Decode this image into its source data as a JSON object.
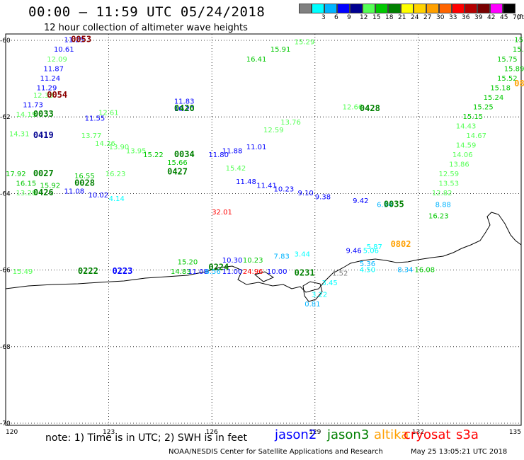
{
  "header": {
    "time_range": "00:00 – 11:59 UTC 05/24/2018",
    "subtitle": "12 hour collection of altimeter wave heights"
  },
  "legend": {
    "unit": "(ft)",
    "bins": [
      {
        "color": "#808080",
        "label": ""
      },
      {
        "color": "#00ffff",
        "label": "3"
      },
      {
        "color": "#00b4ff",
        "label": "6"
      },
      {
        "color": "#0000ff",
        "label": "9"
      },
      {
        "color": "#000090",
        "label": "12"
      },
      {
        "color": "#55ff55",
        "label": "15"
      },
      {
        "color": "#00c800",
        "label": "18"
      },
      {
        "color": "#008000",
        "label": "21"
      },
      {
        "color": "#ffff00",
        "label": "24"
      },
      {
        "color": "#ffd200",
        "label": "27"
      },
      {
        "color": "#ffa000",
        "label": "30"
      },
      {
        "color": "#ff6400",
        "label": "33"
      },
      {
        "color": "#ff0000",
        "label": "36"
      },
      {
        "color": "#b40000",
        "label": "39"
      },
      {
        "color": "#780000",
        "label": "42"
      },
      {
        "color": "#ff00ff",
        "label": "45"
      },
      {
        "color": "#000000",
        "label": "70"
      }
    ]
  },
  "map": {
    "lat_labels": [
      "-60",
      "-62",
      "-64",
      "-66",
      "-68",
      "-70"
    ],
    "lon_labels": [
      "120",
      "123",
      "126",
      "129",
      "132",
      "135"
    ]
  },
  "observations": [
    {
      "t": "11.25",
      "c": "#0000ff",
      "lon": 121.7,
      "lat": -60.05
    },
    {
      "t": "10.61",
      "c": "#0000ff",
      "lon": 121.4,
      "lat": -60.3
    },
    {
      "t": "12.09",
      "c": "#55ff55",
      "lon": 121.2,
      "lat": -60.55
    },
    {
      "t": "11.87",
      "c": "#0000ff",
      "lon": 121.1,
      "lat": -60.8
    },
    {
      "t": "11.24",
      "c": "#0000ff",
      "lon": 121.0,
      "lat": -61.05
    },
    {
      "t": "11.29",
      "c": "#0000ff",
      "lon": 120.9,
      "lat": -61.3
    },
    {
      "t": "12.33",
      "c": "#55ff55",
      "lon": 120.8,
      "lat": -61.5
    },
    {
      "t": "11.73",
      "c": "#0000ff",
      "lon": 120.5,
      "lat": -61.75
    },
    {
      "t": "14.19",
      "c": "#55ff55",
      "lon": 120.3,
      "lat": -62.0
    },
    {
      "t": "11.55",
      "c": "#0000ff",
      "lon": 122.3,
      "lat": -62.1
    },
    {
      "t": "12.61",
      "c": "#55ff55",
      "lon": 122.7,
      "lat": -61.95
    },
    {
      "t": "11.83",
      "c": "#0000ff",
      "lon": 124.9,
      "lat": -61.65
    },
    {
      "t": "10.20",
      "c": "#0000ff",
      "lon": 124.9,
      "lat": -61.85
    },
    {
      "t": "13.77",
      "c": "#55ff55",
      "lon": 122.2,
      "lat": -62.55
    },
    {
      "t": "14.26",
      "c": "#55ff55",
      "lon": 122.6,
      "lat": -62.75
    },
    {
      "t": "13.90",
      "c": "#55ff55",
      "lon": 123.0,
      "lat": -62.85
    },
    {
      "t": "13.95",
      "c": "#55ff55",
      "lon": 123.5,
      "lat": -62.95
    },
    {
      "t": "15.22",
      "c": "#00c800",
      "lon": 124.0,
      "lat": -63.05
    },
    {
      "t": "11.80",
      "c": "#0000ff",
      "lon": 125.9,
      "lat": -63.05
    },
    {
      "t": "11.88",
      "c": "#0000ff",
      "lon": 126.3,
      "lat": -62.95
    },
    {
      "t": "11.01",
      "c": "#0000ff",
      "lon": 127.0,
      "lat": -62.85
    },
    {
      "t": "15.66",
      "c": "#00c800",
      "lon": 124.7,
      "lat": -63.25
    },
    {
      "t": "13.76",
      "c": "#55ff55",
      "lon": 128.0,
      "lat": -62.2
    },
    {
      "t": "12.59",
      "c": "#55ff55",
      "lon": 127.5,
      "lat": -62.4
    },
    {
      "t": "12.66",
      "c": "#55ff55",
      "lon": 129.8,
      "lat": -61.8
    },
    {
      "t": "11.48",
      "c": "#0000ff",
      "lon": 126.7,
      "lat": -63.75
    },
    {
      "t": "11.41",
      "c": "#0000ff",
      "lon": 127.3,
      "lat": -63.85
    },
    {
      "t": "10.23",
      "c": "#0000ff",
      "lon": 127.8,
      "lat": -63.95
    },
    {
      "t": "9.10",
      "c": "#0000ff",
      "lon": 128.5,
      "lat": -64.05
    },
    {
      "t": "9.38",
      "c": "#0000ff",
      "lon": 129.0,
      "lat": -64.15
    },
    {
      "t": "9.42",
      "c": "#0000ff",
      "lon": 130.1,
      "lat": -64.25
    },
    {
      "t": "6.14",
      "c": "#00b4ff",
      "lon": 130.8,
      "lat": -64.35
    },
    {
      "t": "8.88",
      "c": "#00b4ff",
      "lon": 132.5,
      "lat": -64.35
    },
    {
      "t": "12.82",
      "c": "#55ff55",
      "lon": 132.4,
      "lat": -64.05
    },
    {
      "t": "16.23",
      "c": "#00c800",
      "lon": 132.3,
      "lat": -64.65
    },
    {
      "t": "13.53",
      "c": "#55ff55",
      "lon": 132.6,
      "lat": -63.8
    },
    {
      "t": "12.59",
      "c": "#55ff55",
      "lon": 132.6,
      "lat": -63.55
    },
    {
      "t": "13.86",
      "c": "#55ff55",
      "lon": 132.9,
      "lat": -63.3
    },
    {
      "t": "14.06",
      "c": "#55ff55",
      "lon": 133.0,
      "lat": -63.05
    },
    {
      "t": "14.59",
      "c": "#55ff55",
      "lon": 133.1,
      "lat": -62.8
    },
    {
      "t": "14.67",
      "c": "#55ff55",
      "lon": 133.4,
      "lat": -62.55
    },
    {
      "t": "14.43",
      "c": "#55ff55",
      "lon": 133.1,
      "lat": -62.3
    },
    {
      "t": "15.15",
      "c": "#00c800",
      "lon": 133.3,
      "lat": -62.05
    },
    {
      "t": "15.25",
      "c": "#00c800",
      "lon": 133.6,
      "lat": -61.8
    },
    {
      "t": "15.24",
      "c": "#00c800",
      "lon": 133.9,
      "lat": -61.55
    },
    {
      "t": "15.18",
      "c": "#00c800",
      "lon": 134.1,
      "lat": -61.3
    },
    {
      "t": "15.52",
      "c": "#00c800",
      "lon": 134.3,
      "lat": -61.05
    },
    {
      "t": "15.89",
      "c": "#00c800",
      "lon": 134.5,
      "lat": -60.8
    },
    {
      "t": "15.75",
      "c": "#00c800",
      "lon": 134.3,
      "lat": -60.55
    },
    {
      "t": "15.85",
      "c": "#00c800",
      "lon": 134.75,
      "lat": -60.3
    },
    {
      "t": "15.76",
      "c": "#00c800",
      "lon": 134.8,
      "lat": -60.05
    },
    {
      "t": "17.92",
      "c": "#00c800",
      "lon": 120.0,
      "lat": -63.55
    },
    {
      "t": "16.15",
      "c": "#00c800",
      "lon": 120.3,
      "lat": -63.8
    },
    {
      "t": "15.92",
      "c": "#00c800",
      "lon": 121.0,
      "lat": -63.85
    },
    {
      "t": "16.55",
      "c": "#00c800",
      "lon": 122.0,
      "lat": -63.6
    },
    {
      "t": "11.08",
      "c": "#0000ff",
      "lon": 121.7,
      "lat": -64.0
    },
    {
      "t": "10.02",
      "c": "#0000ff",
      "lon": 122.4,
      "lat": -64.1
    },
    {
      "t": "4.14",
      "c": "#00ffff",
      "lon": 123.0,
      "lat": -64.2
    },
    {
      "t": "13.28",
      "c": "#55ff55",
      "lon": 120.3,
      "lat": -64.05
    },
    {
      "t": "16.23",
      "c": "#55ff55",
      "lon": 122.9,
      "lat": -63.55
    },
    {
      "t": "32.01",
      "c": "#ff0000",
      "lon": 126.0,
      "lat": -64.55
    },
    {
      "t": "15.20",
      "c": "#00c800",
      "lon": 125.0,
      "lat": -65.85
    },
    {
      "t": "14.83",
      "c": "#00c800",
      "lon": 124.8,
      "lat": -66.1
    },
    {
      "t": "11.08",
      "c": "#0000ff",
      "lon": 125.3,
      "lat": -66.1
    },
    {
      "t": "6.56",
      "c": "#00b4ff",
      "lon": 125.8,
      "lat": -66.1
    },
    {
      "t": "10.30",
      "c": "#0000ff",
      "lon": 126.3,
      "lat": -65.8
    },
    {
      "t": "10.23",
      "c": "#00c800",
      "lon": 126.9,
      "lat": -65.8
    },
    {
      "t": "11.00",
      "c": "#0000ff",
      "lon": 126.3,
      "lat": -66.1
    },
    {
      "t": "24.96",
      "c": "#ff0000",
      "lon": 126.9,
      "lat": -66.1
    },
    {
      "t": "10.00",
      "c": "#0000ff",
      "lon": 127.6,
      "lat": -66.1
    },
    {
      "t": "7.83",
      "c": "#00b4ff",
      "lon": 127.8,
      "lat": -65.7
    },
    {
      "t": "3.44",
      "c": "#00ffff",
      "lon": 128.4,
      "lat": -65.65
    },
    {
      "t": "9.46",
      "c": "#0000ff",
      "lon": 129.9,
      "lat": -65.55
    },
    {
      "t": "5.87",
      "c": "#00ffff",
      "lon": 130.5,
      "lat": -65.45
    },
    {
      "t": "5.06",
      "c": "#00ffff",
      "lon": 130.4,
      "lat": -65.55
    },
    {
      "t": "5.36",
      "c": "#00b4ff",
      "lon": 130.3,
      "lat": -65.9
    },
    {
      "t": "4.50",
      "c": "#00ffff",
      "lon": 130.3,
      "lat": -66.05
    },
    {
      "t": "1.52",
      "c": "#808080",
      "lon": 129.5,
      "lat": -66.15
    },
    {
      "t": "3.45",
      "c": "#00ffff",
      "lon": 129.2,
      "lat": -66.4
    },
    {
      "t": "3.22",
      "c": "#00ffff",
      "lon": 128.9,
      "lat": -66.7
    },
    {
      "t": "0.81",
      "c": "#00b4ff",
      "lon": 128.7,
      "lat": -66.95
    },
    {
      "t": "8.34",
      "c": "#00b4ff",
      "lon": 131.4,
      "lat": -66.05
    },
    {
      "t": "16.08",
      "c": "#00c800",
      "lon": 131.9,
      "lat": -66.05
    },
    {
      "t": "15.29",
      "c": "#55ff55",
      "lon": 128.4,
      "lat": -60.1
    },
    {
      "t": "15.91",
      "c": "#00c800",
      "lon": 127.7,
      "lat": -60.3
    },
    {
      "t": "16.41",
      "c": "#00c800",
      "lon": 127.0,
      "lat": -60.55
    },
    {
      "t": "14.31",
      "c": "#55ff55",
      "lon": 120.1,
      "lat": -62.5
    },
    {
      "t": "15.42",
      "c": "#55ff55",
      "lon": 126.4,
      "lat": -63.4
    },
    {
      "t": "15.49",
      "c": "#55ff55",
      "lon": 120.2,
      "lat": -66.1
    }
  ],
  "labels": [
    {
      "t": "0053",
      "c": "#8b0000",
      "lon": 121.9,
      "lat": -60.05
    },
    {
      "t": "0054",
      "c": "#8b0000",
      "lon": 121.2,
      "lat": -61.5
    },
    {
      "t": "0033",
      "c": "#008000",
      "lon": 120.8,
      "lat": -62.0
    },
    {
      "t": "0419",
      "c": "#000090",
      "lon": 120.8,
      "lat": -62.55
    },
    {
      "t": "0420",
      "c": "#008000",
      "lon": 124.9,
      "lat": -61.85
    },
    {
      "t": "0428",
      "c": "#008000",
      "lon": 130.3,
      "lat": -61.85
    },
    {
      "t": "0034",
      "c": "#008000",
      "lon": 124.9,
      "lat": -63.05
    },
    {
      "t": "0427",
      "c": "#008000",
      "lon": 124.7,
      "lat": -63.5
    },
    {
      "t": "0027",
      "c": "#008000",
      "lon": 120.8,
      "lat": -63.55
    },
    {
      "t": "0028",
      "c": "#008000",
      "lon": 122.0,
      "lat": -63.8
    },
    {
      "t": "0426",
      "c": "#008000",
      "lon": 120.8,
      "lat": -64.05
    },
    {
      "t": "0035",
      "c": "#008000",
      "lon": 131.0,
      "lat": -64.35
    },
    {
      "t": "0801",
      "c": "#ffa000",
      "lon": 134.8,
      "lat": -61.2
    },
    {
      "t": "0802",
      "c": "#ffa000",
      "lon": 131.2,
      "lat": -65.4
    },
    {
      "t": "0223",
      "c": "#0000ff",
      "lon": 123.1,
      "lat": -66.1
    },
    {
      "t": "0222",
      "c": "#008000",
      "lon": 122.1,
      "lat": -66.1
    },
    {
      "t": "0224",
      "c": "#008000",
      "lon": 125.9,
      "lat": -66.0
    },
    {
      "t": "0231",
      "c": "#008000",
      "lon": 128.4,
      "lat": -66.15
    }
  ],
  "footer": {
    "note": "note:  1) Time is in UTC;  2) SWH is in feet",
    "satellites": [
      {
        "name": "jason2",
        "color": "#0000ff"
      },
      {
        "name": "jason3",
        "color": "#008000"
      },
      {
        "name": "altika",
        "color": "#ffa000"
      },
      {
        "name": "cryosat",
        "color": "#ff0000"
      },
      {
        "name": "s3a",
        "color": "#ff0000"
      }
    ],
    "credit": "NOAA/NESDIS Center for Satellite Applications and Research",
    "timestamp": "May 25 13:05:21 UTC 2018"
  }
}
